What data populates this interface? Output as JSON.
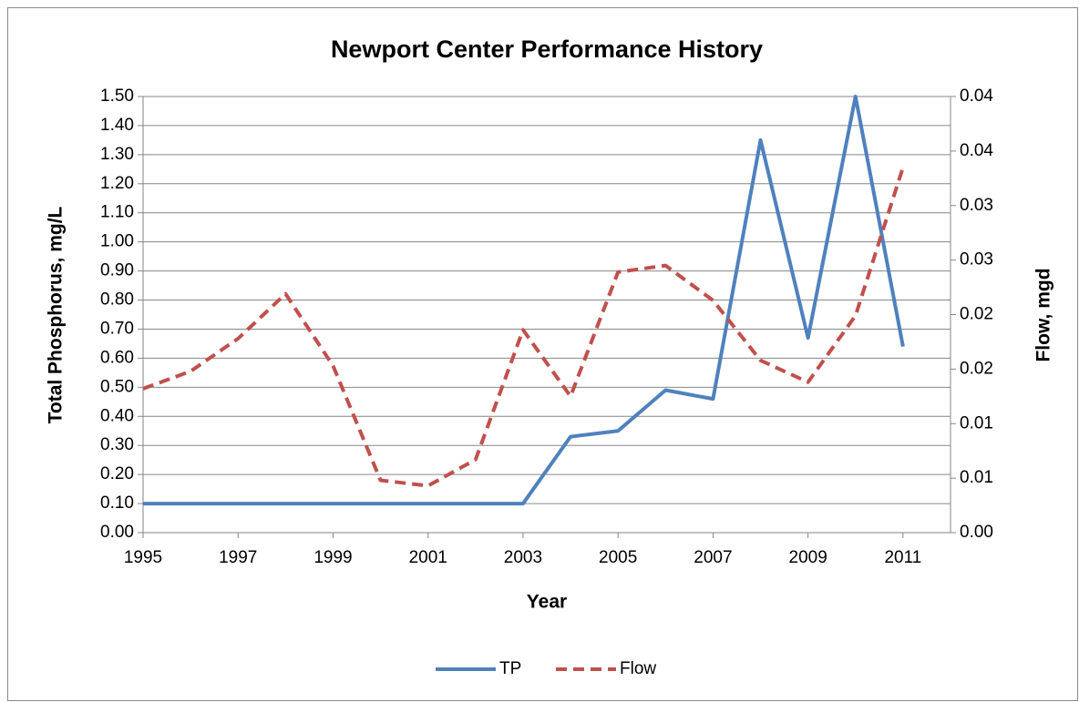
{
  "chart_data": {
    "type": "line",
    "title": "Newport Center Performance History",
    "x_label": "Year",
    "y_label": "Total Phosphorus, mg/L",
    "y2_label": "Flow, mgd",
    "x": [
      1995,
      1996,
      1997,
      1998,
      1999,
      2000,
      2001,
      2002,
      2003,
      2004,
      2005,
      2006,
      2007,
      2008,
      2009,
      2010,
      2011
    ],
    "xlim": [
      1995,
      2012
    ],
    "xticks": [
      1995,
      1997,
      1999,
      2001,
      2003,
      2005,
      2007,
      2009,
      2011
    ],
    "ylim": [
      0,
      1.5
    ],
    "yticks": [
      {
        "value": 0,
        "label": "0.00"
      },
      {
        "value": 0.1,
        "label": "0.10"
      },
      {
        "value": 0.2,
        "label": "0.20"
      },
      {
        "value": 0.3,
        "label": "0.30"
      },
      {
        "value": 0.4,
        "label": "0.40"
      },
      {
        "value": 0.5,
        "label": "0.50"
      },
      {
        "value": 0.6,
        "label": "0.60"
      },
      {
        "value": 0.7,
        "label": "0.70"
      },
      {
        "value": 0.8,
        "label": "0.80"
      },
      {
        "value": 0.9,
        "label": "0.90"
      },
      {
        "value": 1.0,
        "label": "1.00"
      },
      {
        "value": 1.1,
        "label": "1.10"
      },
      {
        "value": 1.2,
        "label": "1.20"
      },
      {
        "value": 1.3,
        "label": "1.30"
      },
      {
        "value": 1.4,
        "label": "1.40"
      },
      {
        "value": 1.5,
        "label": "1.50"
      }
    ],
    "y2lim": [
      0,
      0.04
    ],
    "y2ticks": [
      {
        "value": 0,
        "label": "0.00"
      },
      {
        "value": 0.005,
        "label": "0.01"
      },
      {
        "value": 0.01,
        "label": "0.01"
      },
      {
        "value": 0.015,
        "label": "0.02"
      },
      {
        "value": 0.02,
        "label": "0.02"
      },
      {
        "value": 0.025,
        "label": "0.03"
      },
      {
        "value": 0.03,
        "label": "0.03"
      },
      {
        "value": 0.035,
        "label": "0.04"
      },
      {
        "value": 0.04,
        "label": "0.04"
      }
    ],
    "grid": true,
    "legend": "bottom",
    "series": [
      {
        "name": "TP",
        "color": "#4f81bd",
        "dash": "solid",
        "values": [
          0.1,
          0.1,
          0.1,
          0.1,
          0.1,
          0.1,
          0.1,
          0.1,
          0.1,
          0.33,
          0.35,
          0.49,
          0.46,
          1.35,
          0.67,
          1.5,
          0.64
        ]
      },
      {
        "name": "Flow",
        "color": "#c0504d",
        "dash": "dashed",
        "axis": "y2",
        "values": [
          0.0132,
          0.0148,
          0.0178,
          0.0219,
          0.0153,
          0.0048,
          0.0043,
          0.0067,
          0.0186,
          0.0125,
          0.0239,
          0.0245,
          0.0213,
          0.0158,
          0.0138,
          0.0199,
          0.0335
        ]
      }
    ]
  }
}
